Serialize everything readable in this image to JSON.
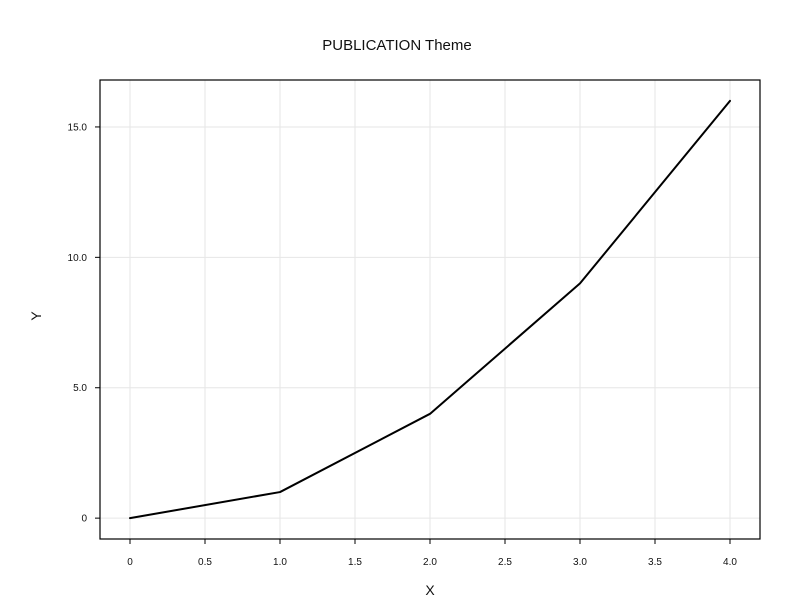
{
  "chart_data": {
    "type": "line",
    "title": "PUBLICATION Theme",
    "xlabel": "X",
    "ylabel": "Y",
    "xlim": [
      -0.2,
      4.2
    ],
    "ylim": [
      -0.8,
      16.8
    ],
    "x_ticks": [
      0,
      0.5,
      1.0,
      1.5,
      2.0,
      2.5,
      3.0,
      3.5,
      4.0
    ],
    "x_tick_labels": [
      "0",
      "0.5",
      "1.0",
      "1.5",
      "2.0",
      "2.5",
      "3.0",
      "3.5",
      "4.0"
    ],
    "y_ticks": [
      0,
      5.0,
      10.0,
      15.0
    ],
    "y_tick_labels": [
      "0",
      "5.0",
      "10.0",
      "15.0"
    ],
    "grid": true,
    "legend": "none",
    "series": [
      {
        "x": [
          0,
          1,
          2,
          3,
          4
        ],
        "y": [
          0,
          1,
          4,
          9,
          16
        ],
        "color": "#000000"
      }
    ]
  }
}
